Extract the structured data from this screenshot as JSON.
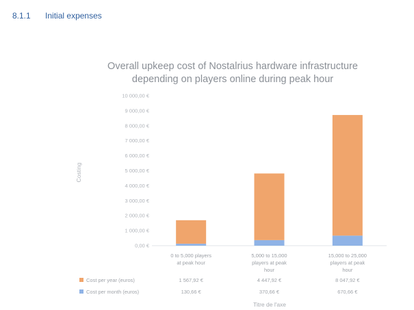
{
  "section": {
    "number": "8.1.1",
    "title": "Initial expenses"
  },
  "chart_data": {
    "type": "bar",
    "stacked": true,
    "title_lines": [
      "Overall upkeep cost of Nostalrius hardware infrastructure",
      "depending on players online during peak hour"
    ],
    "ylabel": "Costing",
    "xlabel": "Titre de l'axe",
    "ylim": [
      0,
      10000
    ],
    "y_ticks": [
      0,
      1000,
      2000,
      3000,
      4000,
      5000,
      6000,
      7000,
      8000,
      9000,
      10000
    ],
    "y_tick_labels": [
      "0,00 €",
      "1 000,00 €",
      "2 000,00 €",
      "3 000,00 €",
      "4 000,00 €",
      "5 000,00 €",
      "6 000,00 €",
      "7 000,00 €",
      "8 000,00 €",
      "9 000,00 €",
      "10 000,00 €"
    ],
    "categories": [
      [
        "0 to 5,000 players",
        "at peak hour"
      ],
      [
        "5,000 to 15,000",
        "players at peak",
        "hour"
      ],
      [
        "15,000 to 25,000",
        "players at peak",
        "hour"
      ]
    ],
    "series": [
      {
        "name": "Cost per month (euros)",
        "color": "#8fb3e6",
        "values": [
          130.66,
          370.66,
          670.66
        ],
        "labels": [
          "130,66 €",
          "370,66 €",
          "670,66 €"
        ]
      },
      {
        "name": "Cost per year (euros)",
        "color": "#f0a56c",
        "values": [
          1567.92,
          4447.92,
          8047.92
        ],
        "labels": [
          "1 567,92 €",
          "4 447,92 €",
          "8 047,92 €"
        ]
      }
    ],
    "legend": "data-table"
  }
}
